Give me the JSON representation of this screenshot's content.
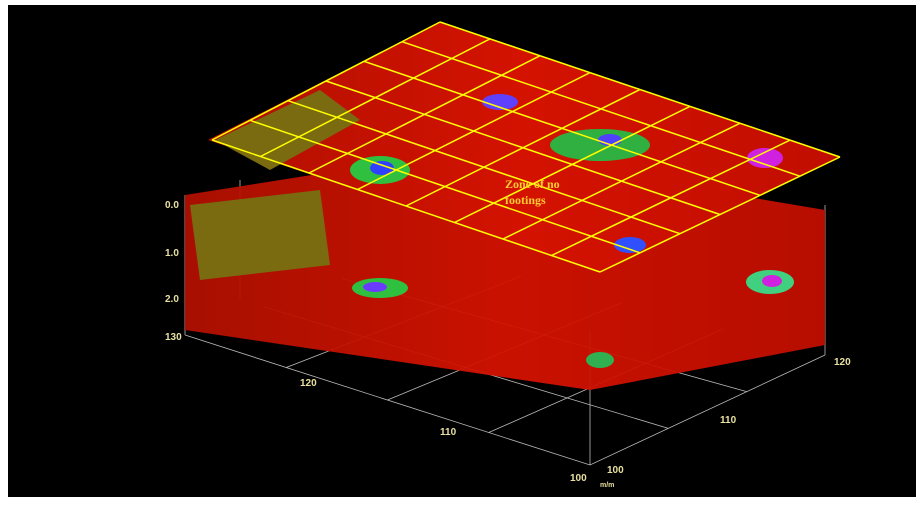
{
  "annotation": {
    "lines": [
      "Zone of no",
      "footings"
    ]
  },
  "depth_axis": {
    "labels": [
      "0.0",
      "1.0",
      "2.0"
    ]
  },
  "left_axis": {
    "labels": [
      "130",
      "120",
      "110",
      "100"
    ]
  },
  "right_axis": {
    "labels": [
      "100",
      "110",
      "120"
    ]
  },
  "unit": "m/m"
}
